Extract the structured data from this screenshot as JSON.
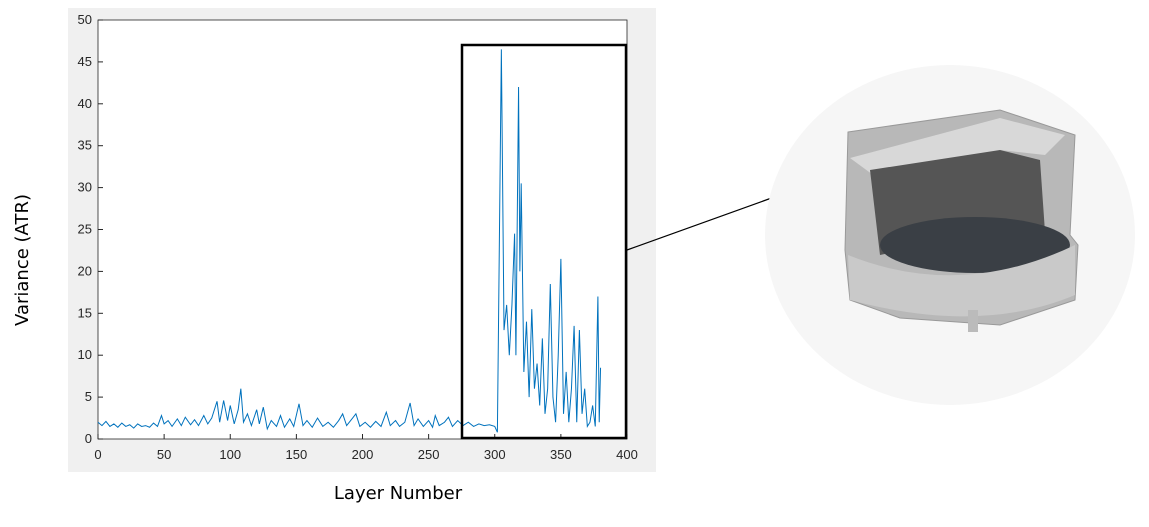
{
  "chart_data": {
    "type": "line",
    "x_label": "Layer Number",
    "y_label": "Variance (ATR)",
    "x": [
      0,
      3,
      6,
      9,
      12,
      15,
      18,
      21,
      24,
      27,
      30,
      33,
      36,
      39,
      42,
      45,
      48,
      50,
      53,
      56,
      60,
      63,
      66,
      70,
      73,
      76,
      80,
      83,
      86,
      90,
      92,
      95,
      98,
      100,
      103,
      106,
      108,
      110,
      113,
      116,
      120,
      122,
      125,
      128,
      131,
      135,
      138,
      141,
      145,
      148,
      152,
      155,
      158,
      162,
      166,
      170,
      174,
      178,
      182,
      185,
      188,
      192,
      195,
      198,
      202,
      206,
      210,
      214,
      218,
      221,
      225,
      228,
      232,
      236,
      239,
      242,
      246,
      250,
      253,
      255,
      258,
      262,
      265,
      268,
      272,
      276,
      280,
      284,
      288,
      292,
      296,
      300,
      302,
      305,
      307,
      309,
      311,
      313,
      315,
      316,
      318,
      319,
      320,
      322,
      324,
      326,
      328,
      330,
      332,
      334,
      336,
      338,
      340,
      342,
      344,
      346,
      348,
      350,
      352,
      354,
      356,
      358,
      360,
      362,
      364,
      366,
      368,
      370,
      372,
      374,
      376,
      378,
      379,
      380
    ],
    "values": [
      2,
      1.6,
      2.1,
      1.5,
      1.8,
      1.4,
      1.9,
      1.5,
      1.7,
      1.3,
      1.8,
      1.5,
      1.6,
      1.4,
      1.9,
      1.5,
      2.8,
      1.8,
      2.2,
      1.5,
      2.4,
      1.6,
      2.6,
      1.7,
      2.3,
      1.6,
      2.8,
      1.8,
      2.5,
      4.5,
      2,
      4.6,
      2.2,
      4,
      1.8,
      3.5,
      6,
      2,
      3,
      1.6,
      3.5,
      1.8,
      3.8,
      1.2,
      2.2,
      1.5,
      2.8,
      1.4,
      2.4,
      1.5,
      4.2,
      1.6,
      2.2,
      1.4,
      2.5,
      1.5,
      2,
      1.4,
      2.2,
      3,
      1.6,
      2.4,
      3,
      1.5,
      2,
      1.4,
      2.1,
      1.5,
      3.2,
      1.6,
      2.2,
      1.5,
      2,
      4.3,
      1.6,
      2.4,
      1.5,
      2.2,
      1.4,
      2.8,
      1.6,
      2,
      2.6,
      1.5,
      2.2,
      1.6,
      2,
      1.5,
      1.8,
      1.6,
      1.7,
      1.5,
      0.8,
      46.5,
      13,
      16,
      10,
      16,
      24.5,
      10,
      42,
      20,
      30.5,
      8,
      14,
      5,
      15.5,
      6,
      9,
      4,
      12,
      3,
      6,
      18.5,
      5,
      2,
      10,
      21.5,
      3,
      8,
      2,
      6,
      13.5,
      2,
      13,
      3,
      6,
      1.5,
      2,
      4,
      1.5,
      17,
      2,
      8.5
    ],
    "color": "#0072bd",
    "xlim": [
      0,
      400
    ],
    "xticks": [
      0,
      50,
      100,
      150,
      200,
      250,
      300,
      350,
      400
    ],
    "ylim": [
      0,
      50
    ],
    "yticks": [
      0,
      5,
      10,
      15,
      20,
      25,
      30,
      35,
      40,
      45,
      50
    ]
  }
}
